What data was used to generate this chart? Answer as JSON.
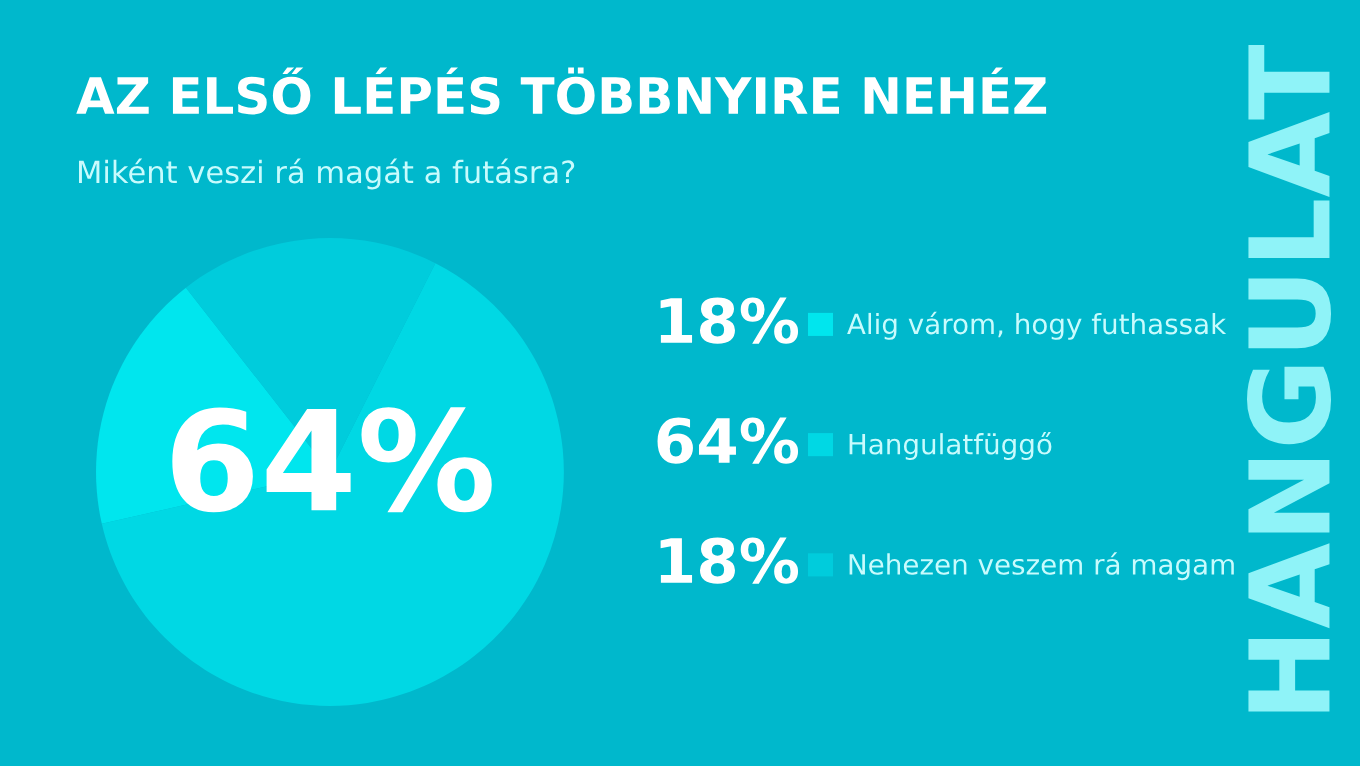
{
  "chart_data": {
    "type": "pie",
    "title": "AZ ELSŐ LÉPÉS TÖBBNYIRE NEHÉZ",
    "subtitle": "Miként veszi rá magát a futásra?",
    "categories": [
      "Alig várom, hogy futhassak",
      "Hangulatfüggő",
      "Nehezen veszem rá magam"
    ],
    "values": [
      18,
      64,
      18
    ],
    "colors": [
      "#00e6ee",
      "#00d8e4",
      "#00ccdc"
    ],
    "value_labels": [
      "18%",
      "64%",
      "18%"
    ],
    "legend": "right",
    "annotations": [
      "64%",
      "HANGULAT"
    ]
  }
}
